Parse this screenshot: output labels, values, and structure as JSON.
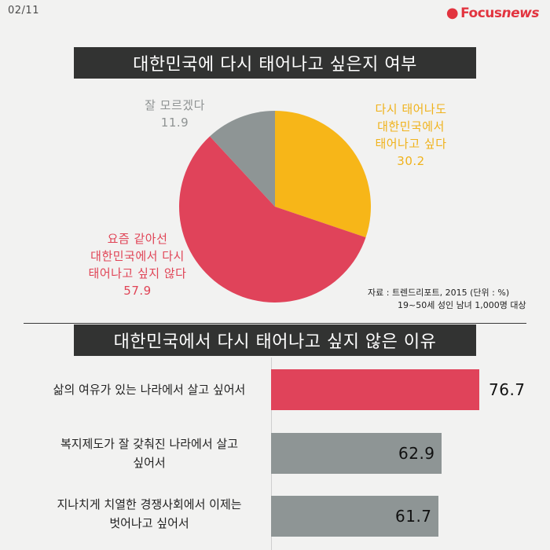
{
  "header": {
    "page_number": "02/11",
    "brand_focus": "Focus",
    "brand_news": "news"
  },
  "pie_section": {
    "title": "대한민국에 다시 태어나고 싶은지 여부",
    "source_line1": "자료 : 트렌드리포트, 2015 (단위 : %)",
    "source_line2": "19~50세 성인 남녀 1,000명 대상"
  },
  "bar_section": {
    "title": "대한민국에서 다시 태어나고 싶지 않은 이유"
  },
  "colors": {
    "yes": "#f7b618",
    "no": "#e0435a",
    "unsure": "#8e9595",
    "bar_top": "#e0435a",
    "bar_other": "#8e9595",
    "title_bg": "#323332"
  },
  "chart_data": [
    {
      "type": "pie",
      "title": "대한민국에 다시 태어나고 싶은지 여부",
      "slices": [
        {
          "key": "yes",
          "label_lines": [
            "다시 태어나도",
            "대한민국에서",
            "태어나고 싶다"
          ],
          "value": 30.2,
          "value_text": "30.2"
        },
        {
          "key": "no",
          "label_lines": [
            "요즘 같아선",
            "대한민국에서 다시",
            "태어나고 싶지 않다"
          ],
          "value": 57.9,
          "value_text": "57.9"
        },
        {
          "key": "unsure",
          "label_lines": [
            "잘 모르겠다"
          ],
          "value": 11.9,
          "value_text": "11.9"
        }
      ]
    },
    {
      "type": "bar",
      "title": "대한민국에서 다시 태어나고 싶지 않은 이유",
      "orientation": "horizontal",
      "xlim": [
        0,
        100
      ],
      "bars": [
        {
          "label_lines": [
            "삶의 여유가 있는 나라에서 살고 싶어서"
          ],
          "value": 76.7,
          "value_text": "76.7"
        },
        {
          "label_lines": [
            "복지제도가 잘 갖춰진 나라에서 살고",
            "싶어서"
          ],
          "value": 62.9,
          "value_text": "62.9"
        },
        {
          "label_lines": [
            "지나치게 치열한 경쟁사회에서 이제는",
            "벗어나고 싶어서"
          ],
          "value": 61.7,
          "value_text": "61.7"
        }
      ]
    }
  ]
}
